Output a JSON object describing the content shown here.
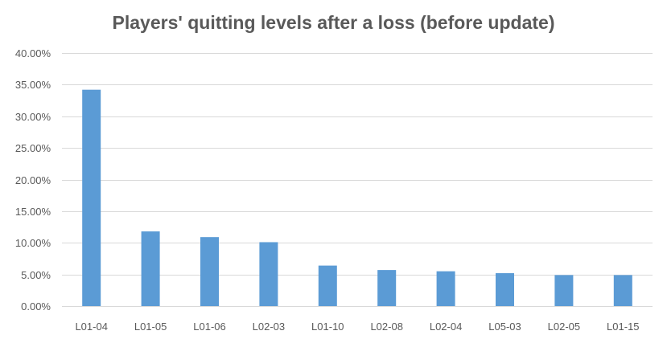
{
  "chart_data": {
    "type": "bar",
    "title": "Players' quitting levels after a loss (before update)",
    "xlabel": "",
    "ylabel": "",
    "categories": [
      "L01-04",
      "L01-05",
      "L01-06",
      "L02-03",
      "L01-10",
      "L02-08",
      "L02-04",
      "L05-03",
      "L02-05",
      "L01-15"
    ],
    "values": [
      34.2,
      11.8,
      10.9,
      10.1,
      6.4,
      5.7,
      5.5,
      5.2,
      4.9,
      4.9
    ],
    "ylim": [
      0,
      40
    ],
    "yticks": [
      0,
      5,
      10,
      15,
      20,
      25,
      30,
      35,
      40
    ],
    "ytick_labels": [
      "0.00%",
      "5.00%",
      "10.00%",
      "15.00%",
      "20.00%",
      "25.00%",
      "30.00%",
      "35.00%",
      "40.00%"
    ],
    "grid": true,
    "legend": "none",
    "colors": {
      "bar": "#5b9bd5",
      "grid": "#d9d9d9",
      "text": "#595959"
    }
  }
}
